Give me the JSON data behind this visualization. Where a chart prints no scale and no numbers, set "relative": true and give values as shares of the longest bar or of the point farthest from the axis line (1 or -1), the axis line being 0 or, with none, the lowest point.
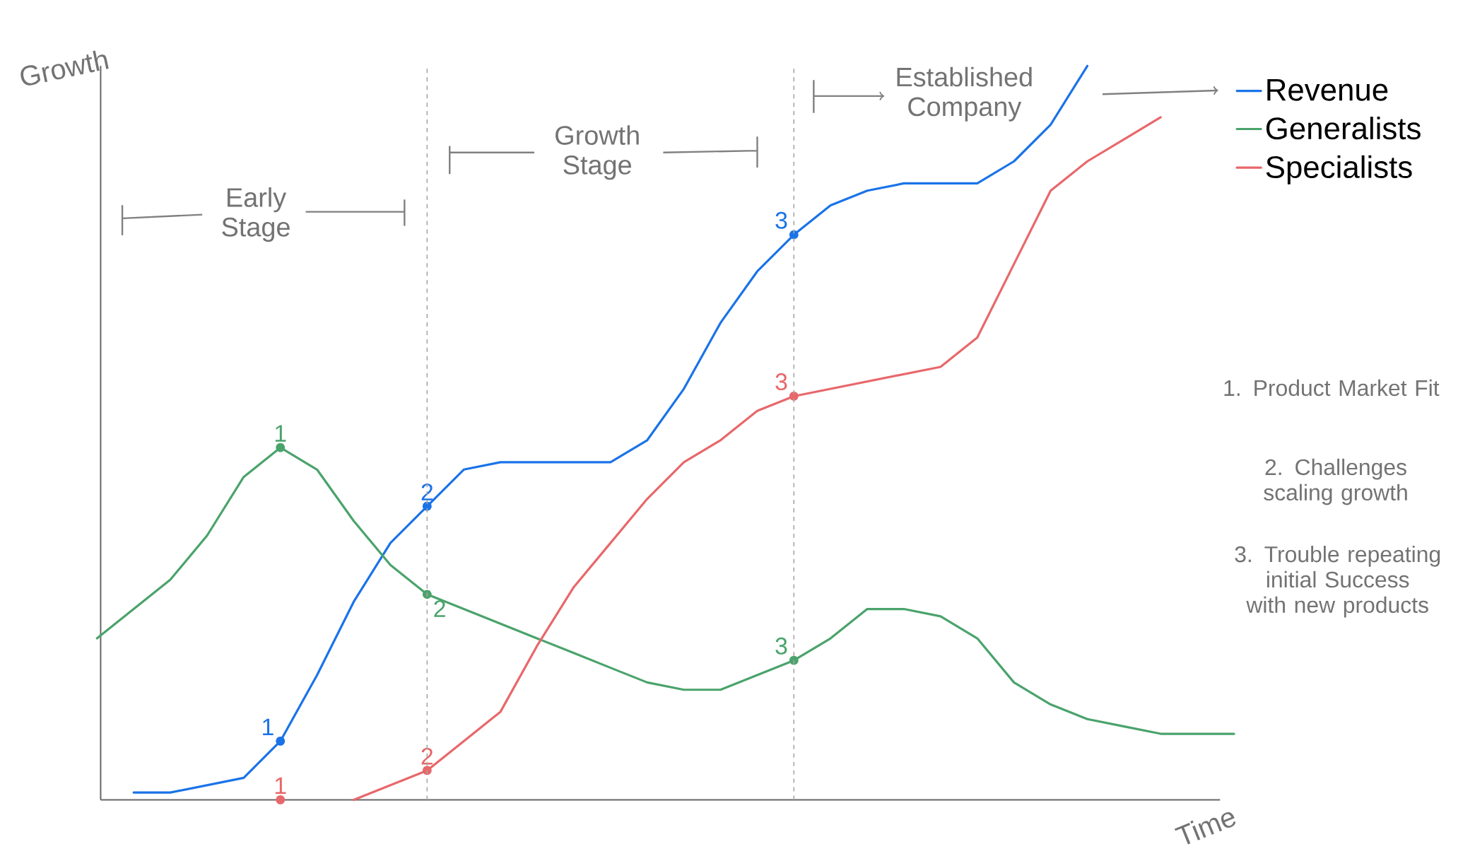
{
  "chart_data": {
    "type": "line",
    "relative": true,
    "xlabel": "Time",
    "ylabel": "Growth",
    "legend": "top right",
    "categories": [
      null,
      null,
      null,
      null,
      null,
      null,
      null,
      null,
      null,
      null,
      null,
      null,
      null,
      null,
      null,
      null,
      null,
      null,
      null,
      null,
      null,
      null,
      null,
      null,
      null,
      null,
      null,
      null,
      null,
      null,
      null,
      null
    ],
    "series": [
      {
        "name": "Revenue",
        "color": "#1a73e8",
        "values": [
          null,
          0.01,
          0.01,
          0.02,
          0.03,
          0.08,
          0.17,
          0.27,
          0.35,
          0.4,
          0.45,
          0.46,
          0.46,
          0.46,
          0.46,
          0.49,
          0.56,
          0.65,
          0.72,
          0.77,
          0.81,
          0.83,
          0.84,
          0.84,
          0.84,
          0.87,
          0.92,
          1.0,
          null,
          null,
          null,
          null
        ]
      },
      {
        "name": "Generalists",
        "color": "#4aa36b",
        "values": [
          0.22,
          0.26,
          0.3,
          0.36,
          0.44,
          0.48,
          0.45,
          0.38,
          0.32,
          0.28,
          0.26,
          0.24,
          0.22,
          0.2,
          0.18,
          0.16,
          0.15,
          0.15,
          0.17,
          0.19,
          0.22,
          0.26,
          0.26,
          0.25,
          0.22,
          0.16,
          0.13,
          0.11,
          0.1,
          0.09,
          0.09,
          0.09
        ]
      },
      {
        "name": "Specialists",
        "color": "#e8676a",
        "values": [
          null,
          null,
          null,
          null,
          null,
          0.0,
          null,
          0.0,
          0.02,
          0.04,
          0.08,
          0.12,
          0.21,
          0.29,
          0.35,
          0.41,
          0.46,
          0.49,
          0.53,
          0.55,
          0.56,
          0.57,
          0.58,
          0.59,
          0.63,
          0.73,
          0.83,
          0.87,
          0.9,
          0.93,
          null,
          null
        ]
      }
    ],
    "annotations": [
      "Early Stage",
      "Growth Stage",
      "Established Company",
      "1. Product Market Fit",
      "2. Challenges scaling growth",
      "3. Trouble repeating initial Success with new products",
      "1",
      "2",
      "3",
      "1",
      "2",
      "3",
      "1",
      "2",
      "3"
    ]
  }
}
